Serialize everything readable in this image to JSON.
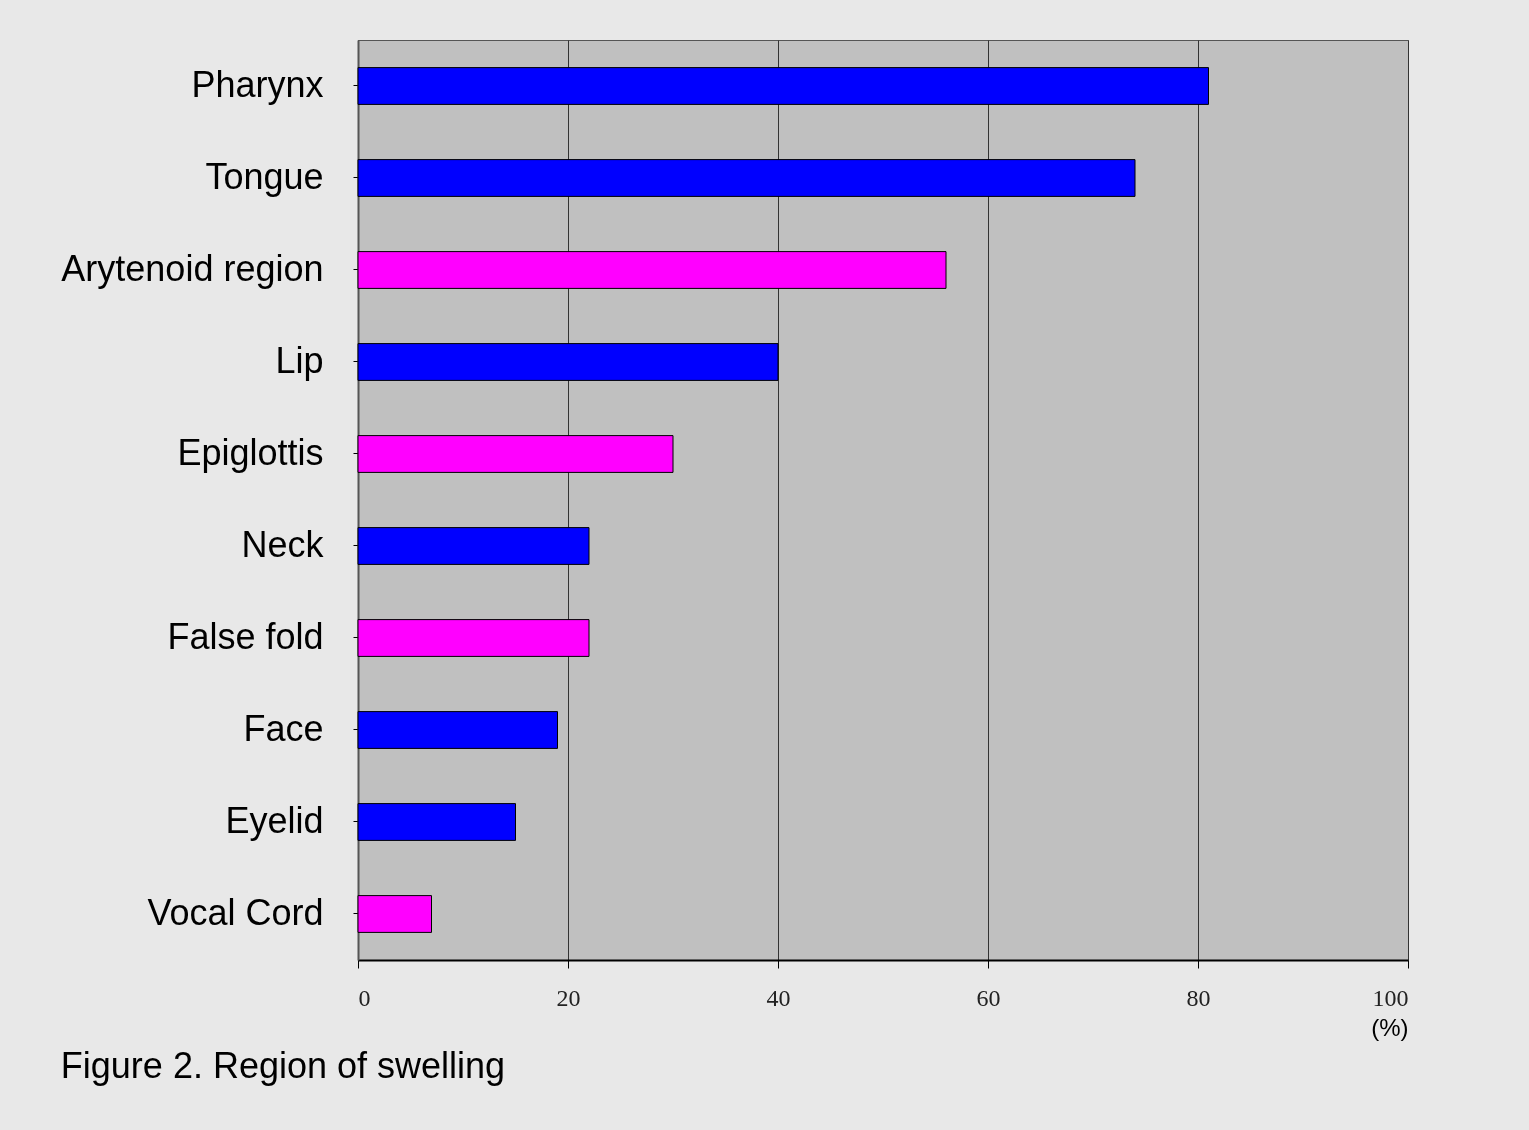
{
  "chart_data": {
    "type": "bar",
    "orientation": "horizontal",
    "title": "Figure 2. Region of swelling",
    "xlabel": "(%)",
    "categories": [
      "Pharynx",
      "Tongue",
      "Arytenoid region",
      "Lip",
      "Epiglottis",
      "Neck",
      "False fold",
      "Face",
      "Eyelid",
      "Vocal Cord"
    ],
    "values": [
      81,
      74,
      56,
      40,
      30,
      22,
      22,
      19,
      15,
      7
    ],
    "colors": [
      "#0000ff",
      "#0000ff",
      "#ff00ff",
      "#0000ff",
      "#ff00ff",
      "#0000ff",
      "#ff00ff",
      "#0000ff",
      "#0000ff",
      "#ff00ff"
    ],
    "xlim": [
      0,
      100
    ],
    "xticks": [
      0,
      20,
      40,
      60,
      80,
      100
    ],
    "grid": "x"
  }
}
